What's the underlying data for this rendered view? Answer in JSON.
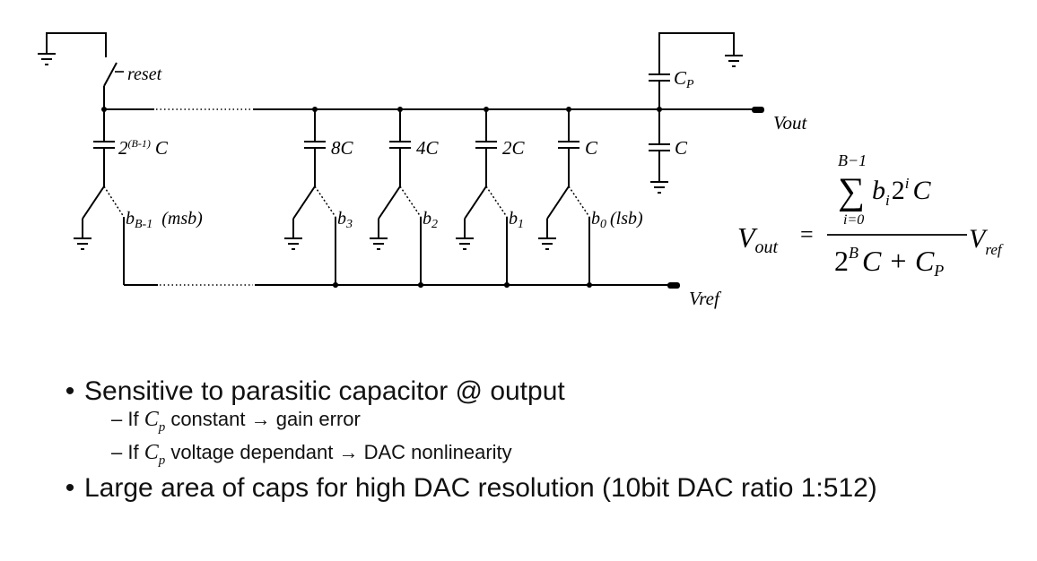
{
  "circuit": {
    "reset_label": "reset",
    "vout_label": "Vout",
    "vref_label": "Vref",
    "parasitic_cap": {
      "main": "C",
      "sub": "P"
    },
    "term_cap": "C",
    "msb_cap": {
      "prefix": "2",
      "exp": "(B-1)",
      "suffix": "C"
    },
    "caps": [
      "8C",
      "4C",
      "2C",
      "C"
    ],
    "msb_switch": {
      "b": "b",
      "sub": "B-1",
      "note": "(msb)"
    },
    "switches": [
      {
        "b": "b",
        "sub": "3",
        "note": ""
      },
      {
        "b": "b",
        "sub": "2",
        "note": ""
      },
      {
        "b": "b",
        "sub": "1",
        "note": ""
      },
      {
        "b": "b",
        "sub": "0",
        "note": "(lsb)"
      }
    ]
  },
  "formula": {
    "lhs_main": "V",
    "lhs_sub": "out",
    "equals": "=",
    "sum_upper": "B−1",
    "sum_symbol": "∑",
    "sum_lower": "i=0",
    "num_b": "b",
    "num_b_sub": "i",
    "num_two": "2",
    "num_exp": "i",
    "num_c": "C",
    "den_two": "2",
    "den_exp": "B",
    "den_rest": "C + C",
    "den_sub": "P",
    "rhs_main": "V",
    "rhs_sub": "ref"
  },
  "bullets": {
    "b1": "Sensitive to parasitic capacitor @ output",
    "b1_sub1": {
      "pre": "– If ",
      "var": "C",
      "sub": "p",
      "post": " constant → gain error"
    },
    "b1_sub2": {
      "pre": "– If ",
      "var": "C",
      "sub": "p",
      "post": " voltage dependant → DAC nonlinearity"
    },
    "b2": "Large area of caps for high DAC resolution (10bit DAC ratio 1:512)",
    "bullet_char": "•"
  }
}
